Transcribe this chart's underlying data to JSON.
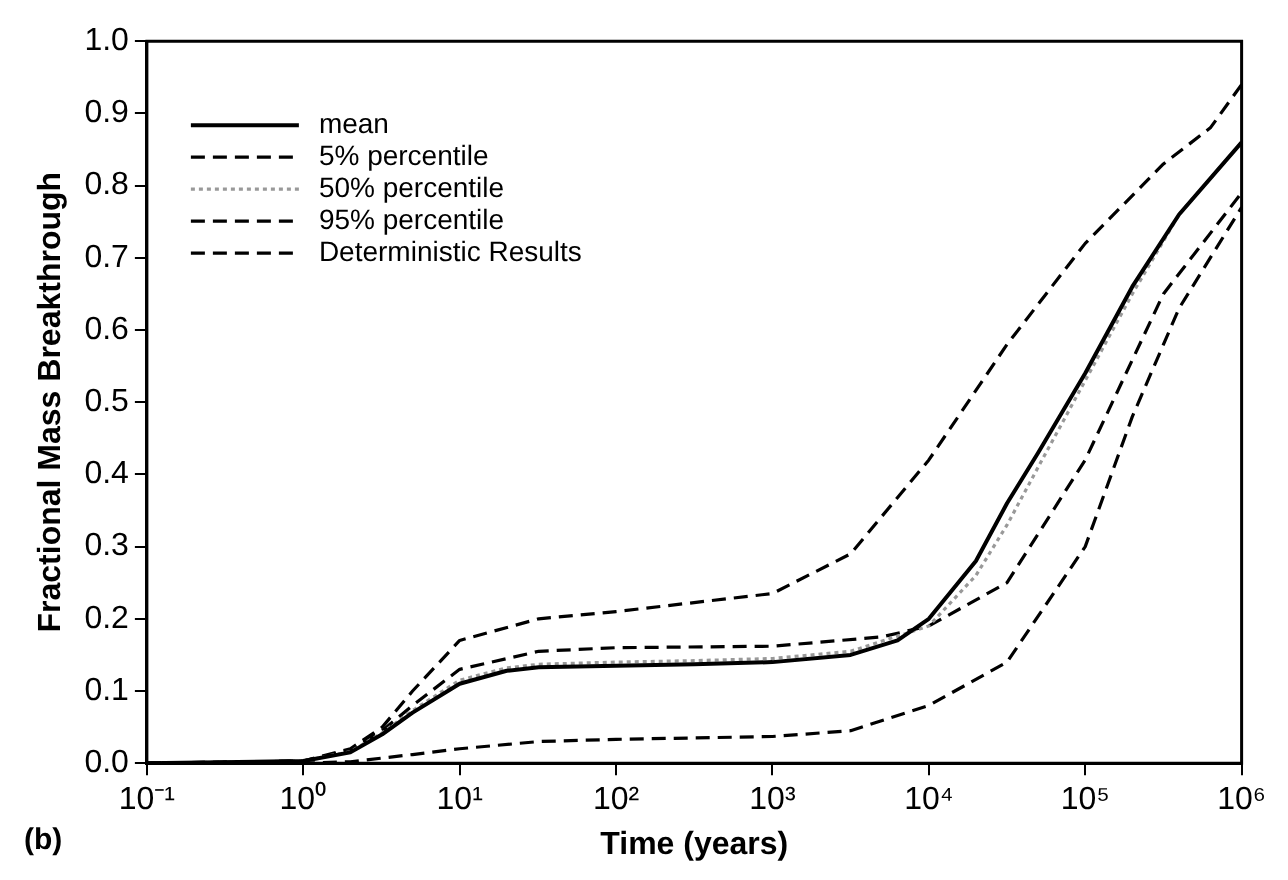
{
  "chart_data": {
    "type": "line",
    "xlabel": "Time (years)",
    "ylabel": "Fractional Mass Breakthrough",
    "log": "x",
    "xlim": [
      0.1,
      1000000
    ],
    "ylim": [
      0,
      1
    ],
    "xticks": [
      {
        "value": 0.1,
        "label": "10⁻¹"
      },
      {
        "value": 1,
        "label": "10⁰"
      },
      {
        "value": 10,
        "label": "10¹"
      },
      {
        "value": 100,
        "label": "10²"
      },
      {
        "value": 1000,
        "label": "10³"
      },
      {
        "value": 10000,
        "label": "10⁴"
      },
      {
        "value": 100000,
        "label": "10⁵"
      },
      {
        "value": 1000000,
        "label": "10⁶"
      }
    ],
    "yticks": [
      {
        "value": 0,
        "label": "0.0"
      },
      {
        "value": 0.1,
        "label": "0.1"
      },
      {
        "value": 0.2,
        "label": "0.2"
      },
      {
        "value": 0.3,
        "label": "0.3"
      },
      {
        "value": 0.4,
        "label": "0.4"
      },
      {
        "value": 0.5,
        "label": "0.5"
      },
      {
        "value": 0.6,
        "label": "0.6"
      },
      {
        "value": 0.7,
        "label": "0.7"
      },
      {
        "value": 0.8,
        "label": "0.8"
      },
      {
        "value": 0.9,
        "label": "0.9"
      },
      {
        "value": 1,
        "label": "1.0"
      }
    ],
    "grid": false,
    "legend": "top left",
    "marker": "none",
    "annotations": [
      "(b)"
    ],
    "series": [
      {
        "name": "mean",
        "color": "#000000",
        "line_style": "solid",
        "x": [
          0.1,
          1,
          2,
          3.2,
          5,
          10,
          20,
          32,
          100,
          316,
          1000,
          3162,
          6310,
          10000,
          20000,
          31623,
          50000,
          100000,
          200000,
          398107,
          1000000
        ],
        "values": [
          0,
          0.003,
          0.015,
          0.04,
          0.07,
          0.11,
          0.128,
          0.133,
          0.135,
          0.137,
          0.14,
          0.15,
          0.17,
          0.2,
          0.28,
          0.36,
          0.43,
          0.54,
          0.66,
          0.76,
          0.86
        ]
      },
      {
        "name": "5% percentile",
        "color": "#000000",
        "line_style": "dashed",
        "x": [
          0.1,
          1,
          2,
          5,
          10,
          32,
          100,
          1000,
          3162,
          10000,
          31623,
          100000,
          200000,
          398107,
          1000000
        ],
        "values": [
          0,
          0,
          0.002,
          0.012,
          0.02,
          0.03,
          0.033,
          0.037,
          0.045,
          0.08,
          0.14,
          0.3,
          0.48,
          0.63,
          0.77
        ]
      },
      {
        "name": "50% percentile",
        "color": "#999999",
        "line_style": "dotted",
        "x": [
          0.1,
          1,
          2,
          3.2,
          5,
          10,
          20,
          32,
          100,
          316,
          1000,
          3162,
          10000,
          20000,
          31623,
          50000,
          100000,
          200000,
          398107,
          1000000
        ],
        "values": [
          0,
          0.003,
          0.016,
          0.042,
          0.073,
          0.115,
          0.132,
          0.137,
          0.14,
          0.142,
          0.145,
          0.155,
          0.19,
          0.26,
          0.33,
          0.41,
          0.53,
          0.65,
          0.76,
          0.86
        ]
      },
      {
        "name": "95% percentile",
        "color": "#000000",
        "line_style": "dashed",
        "x": [
          0.1,
          1,
          2,
          3.2,
          5,
          10,
          32,
          100,
          1000,
          3162,
          10000,
          31623,
          100000,
          316228,
          631000,
          1000000
        ],
        "values": [
          0,
          0.003,
          0.02,
          0.05,
          0.1,
          0.17,
          0.2,
          0.21,
          0.235,
          0.29,
          0.42,
          0.58,
          0.72,
          0.83,
          0.88,
          0.94
        ]
      },
      {
        "name": "Deterministic Results",
        "color": "#000000",
        "line_style": "dashed",
        "x": [
          0.1,
          1,
          2,
          3.2,
          5,
          10,
          32,
          100,
          1000,
          5012,
          10000,
          31623,
          100000,
          316228,
          1000000
        ],
        "values": [
          0,
          0.003,
          0.018,
          0.045,
          0.08,
          0.13,
          0.155,
          0.16,
          0.162,
          0.175,
          0.19,
          0.25,
          0.42,
          0.65,
          0.79
        ]
      }
    ]
  }
}
